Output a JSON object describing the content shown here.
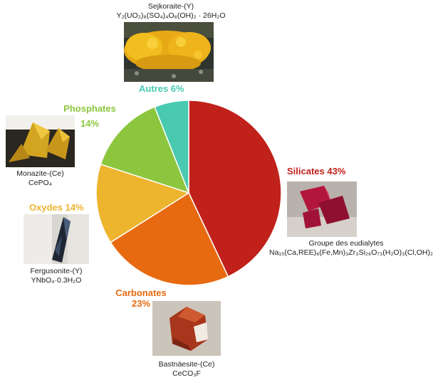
{
  "chart_data": {
    "type": "pie",
    "slices": [
      {
        "name": "Silicates",
        "value": 43,
        "label": "Silicates 43%",
        "color": "#c0211a"
      },
      {
        "name": "Carbonates",
        "value": 23,
        "label_name": "Carbonates",
        "label_pct": "23%",
        "color": "#e86a10"
      },
      {
        "name": "Oxydes",
        "value": 14,
        "label": "Oxydes 14%",
        "color": "#edb42e"
      },
      {
        "name": "Phosphates",
        "value": 14,
        "label_name": "Phosphates",
        "label_pct": "14%",
        "color": "#8cc63e"
      },
      {
        "name": "Autres",
        "value": 6,
        "label": "Autres 6%",
        "color": "#48c9b0"
      }
    ]
  },
  "minerals": {
    "sejkoraite": {
      "name": "Sejkoraite-(Y)",
      "formula": "Y₂(UO₂)₈(SO₄)₄O₆(OH)₂ · 26H₂O"
    },
    "monazite": {
      "name": "Monazite-(Ce)",
      "formula": "CePO₄"
    },
    "fergusonite": {
      "name": "Fergusonite-(Y)",
      "formula": "YNbO₄·0.3H₂O"
    },
    "eudialytes": {
      "name": "Groupe des eudialytes",
      "formula": "Na₁₅(Ca,REE)₆(Fe,Mn)₃Zr₃Si₂₆O₇₃(H₂O)₃(Cl,OH)₂"
    },
    "bastnaesite": {
      "name": "Bastnäesite-(Ce)",
      "formula": "CeCO₃F"
    }
  }
}
